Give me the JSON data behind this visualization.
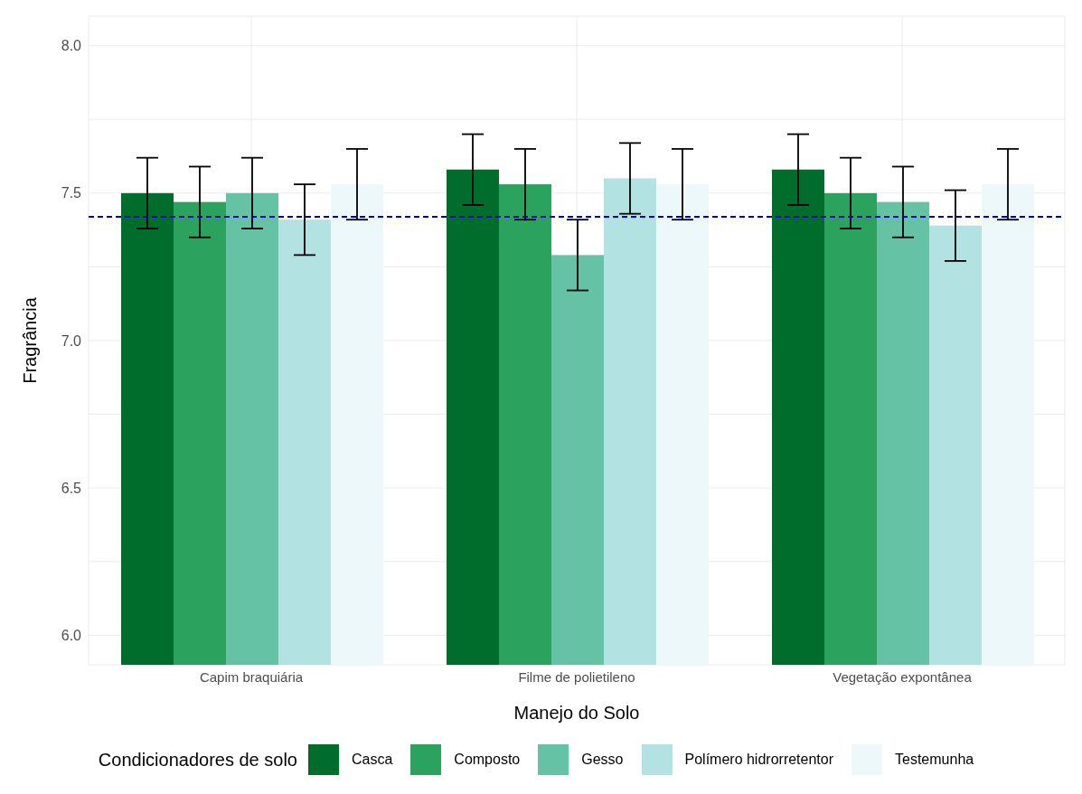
{
  "chart_data": {
    "type": "bar",
    "xlabel": "Manejo do Solo",
    "ylabel": "Fragrância",
    "legend_title": "Condicionadores de solo",
    "categories": [
      "Capim braquiária",
      "Filme de polietileno",
      "Vegetação expontânea"
    ],
    "series": [
      {
        "name": "Casca",
        "color": "#006d2c",
        "values": [
          7.5,
          7.58,
          7.58
        ],
        "errors": [
          0.12,
          0.12,
          0.12
        ]
      },
      {
        "name": "Composto",
        "color": "#2ca25f",
        "values": [
          7.47,
          7.53,
          7.5
        ],
        "errors": [
          0.12,
          0.12,
          0.12
        ]
      },
      {
        "name": "Gesso",
        "color": "#66c2a4",
        "values": [
          7.5,
          7.29,
          7.47
        ],
        "errors": [
          0.12,
          0.12,
          0.12
        ]
      },
      {
        "name": "Polímero hidrorretentor",
        "color": "#b2e2e2",
        "values": [
          7.41,
          7.55,
          7.39
        ],
        "errors": [
          0.12,
          0.12,
          0.12
        ]
      },
      {
        "name": "Testemunha",
        "color": "#edf8fb",
        "values": [
          7.53,
          7.53,
          7.53
        ],
        "errors": [
          0.12,
          0.12,
          0.12
        ]
      }
    ],
    "ylim": [
      5.9,
      8.1
    ],
    "yticks": [
      {
        "value": 6,
        "label": "6.0"
      },
      {
        "value": 6.25,
        "label": null
      },
      {
        "value": 6.5,
        "label": "6.5"
      },
      {
        "value": 6.75,
        "label": null
      },
      {
        "value": 7,
        "label": "7.0"
      },
      {
        "value": 7.25,
        "label": null
      },
      {
        "value": 7.5,
        "label": "7.5"
      },
      {
        "value": 7.75,
        "label": null
      },
      {
        "value": 8,
        "label": "8.0"
      }
    ],
    "ref_lines": [
      {
        "axis": "y",
        "value": 7.42,
        "color": "#0000cc",
        "line_style": "dashed"
      }
    ],
    "grid": true,
    "legend": "bottom"
  }
}
